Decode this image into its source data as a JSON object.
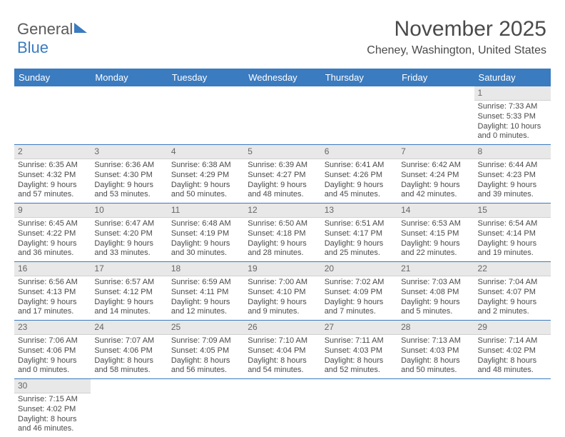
{
  "logo": {
    "part1": "General",
    "part2": "Blue"
  },
  "title": "November 2025",
  "location": "Cheney, Washington, United States",
  "header_bg": "#3b7bbf",
  "header_text": "#ffffff",
  "daynum_bg": "#e8e8e8",
  "rule_color": "#3b7bbf",
  "weekdays": [
    "Sunday",
    "Monday",
    "Tuesday",
    "Wednesday",
    "Thursday",
    "Friday",
    "Saturday"
  ],
  "labels": {
    "sunrise": "Sunrise:",
    "sunset": "Sunset:",
    "daylight": "Daylight:"
  },
  "weeks": [
    [
      {
        "n": "",
        "sunrise": "",
        "sunset": "",
        "daylight": "",
        "blank": true
      },
      {
        "n": "",
        "sunrise": "",
        "sunset": "",
        "daylight": "",
        "blank": true
      },
      {
        "n": "",
        "sunrise": "",
        "sunset": "",
        "daylight": "",
        "blank": true
      },
      {
        "n": "",
        "sunrise": "",
        "sunset": "",
        "daylight": "",
        "blank": true
      },
      {
        "n": "",
        "sunrise": "",
        "sunset": "",
        "daylight": "",
        "blank": true
      },
      {
        "n": "",
        "sunrise": "",
        "sunset": "",
        "daylight": "",
        "blank": true
      },
      {
        "n": "1",
        "sunrise": "7:33 AM",
        "sunset": "5:33 PM",
        "daylight": "10 hours and 0 minutes."
      }
    ],
    [
      {
        "n": "2",
        "sunrise": "6:35 AM",
        "sunset": "4:32 PM",
        "daylight": "9 hours and 57 minutes."
      },
      {
        "n": "3",
        "sunrise": "6:36 AM",
        "sunset": "4:30 PM",
        "daylight": "9 hours and 53 minutes."
      },
      {
        "n": "4",
        "sunrise": "6:38 AM",
        "sunset": "4:29 PM",
        "daylight": "9 hours and 50 minutes."
      },
      {
        "n": "5",
        "sunrise": "6:39 AM",
        "sunset": "4:27 PM",
        "daylight": "9 hours and 48 minutes."
      },
      {
        "n": "6",
        "sunrise": "6:41 AM",
        "sunset": "4:26 PM",
        "daylight": "9 hours and 45 minutes."
      },
      {
        "n": "7",
        "sunrise": "6:42 AM",
        "sunset": "4:24 PM",
        "daylight": "9 hours and 42 minutes."
      },
      {
        "n": "8",
        "sunrise": "6:44 AM",
        "sunset": "4:23 PM",
        "daylight": "9 hours and 39 minutes."
      }
    ],
    [
      {
        "n": "9",
        "sunrise": "6:45 AM",
        "sunset": "4:22 PM",
        "daylight": "9 hours and 36 minutes."
      },
      {
        "n": "10",
        "sunrise": "6:47 AM",
        "sunset": "4:20 PM",
        "daylight": "9 hours and 33 minutes."
      },
      {
        "n": "11",
        "sunrise": "6:48 AM",
        "sunset": "4:19 PM",
        "daylight": "9 hours and 30 minutes."
      },
      {
        "n": "12",
        "sunrise": "6:50 AM",
        "sunset": "4:18 PM",
        "daylight": "9 hours and 28 minutes."
      },
      {
        "n": "13",
        "sunrise": "6:51 AM",
        "sunset": "4:17 PM",
        "daylight": "9 hours and 25 minutes."
      },
      {
        "n": "14",
        "sunrise": "6:53 AM",
        "sunset": "4:15 PM",
        "daylight": "9 hours and 22 minutes."
      },
      {
        "n": "15",
        "sunrise": "6:54 AM",
        "sunset": "4:14 PM",
        "daylight": "9 hours and 19 minutes."
      }
    ],
    [
      {
        "n": "16",
        "sunrise": "6:56 AM",
        "sunset": "4:13 PM",
        "daylight": "9 hours and 17 minutes."
      },
      {
        "n": "17",
        "sunrise": "6:57 AM",
        "sunset": "4:12 PM",
        "daylight": "9 hours and 14 minutes."
      },
      {
        "n": "18",
        "sunrise": "6:59 AM",
        "sunset": "4:11 PM",
        "daylight": "9 hours and 12 minutes."
      },
      {
        "n": "19",
        "sunrise": "7:00 AM",
        "sunset": "4:10 PM",
        "daylight": "9 hours and 9 minutes."
      },
      {
        "n": "20",
        "sunrise": "7:02 AM",
        "sunset": "4:09 PM",
        "daylight": "9 hours and 7 minutes."
      },
      {
        "n": "21",
        "sunrise": "7:03 AM",
        "sunset": "4:08 PM",
        "daylight": "9 hours and 5 minutes."
      },
      {
        "n": "22",
        "sunrise": "7:04 AM",
        "sunset": "4:07 PM",
        "daylight": "9 hours and 2 minutes."
      }
    ],
    [
      {
        "n": "23",
        "sunrise": "7:06 AM",
        "sunset": "4:06 PM",
        "daylight": "9 hours and 0 minutes."
      },
      {
        "n": "24",
        "sunrise": "7:07 AM",
        "sunset": "4:06 PM",
        "daylight": "8 hours and 58 minutes."
      },
      {
        "n": "25",
        "sunrise": "7:09 AM",
        "sunset": "4:05 PM",
        "daylight": "8 hours and 56 minutes."
      },
      {
        "n": "26",
        "sunrise": "7:10 AM",
        "sunset": "4:04 PM",
        "daylight": "8 hours and 54 minutes."
      },
      {
        "n": "27",
        "sunrise": "7:11 AM",
        "sunset": "4:03 PM",
        "daylight": "8 hours and 52 minutes."
      },
      {
        "n": "28",
        "sunrise": "7:13 AM",
        "sunset": "4:03 PM",
        "daylight": "8 hours and 50 minutes."
      },
      {
        "n": "29",
        "sunrise": "7:14 AM",
        "sunset": "4:02 PM",
        "daylight": "8 hours and 48 minutes."
      }
    ],
    [
      {
        "n": "30",
        "sunrise": "7:15 AM",
        "sunset": "4:02 PM",
        "daylight": "8 hours and 46 minutes."
      },
      {
        "n": "",
        "blank": true
      },
      {
        "n": "",
        "blank": true
      },
      {
        "n": "",
        "blank": true
      },
      {
        "n": "",
        "blank": true
      },
      {
        "n": "",
        "blank": true
      },
      {
        "n": "",
        "blank": true
      }
    ]
  ]
}
